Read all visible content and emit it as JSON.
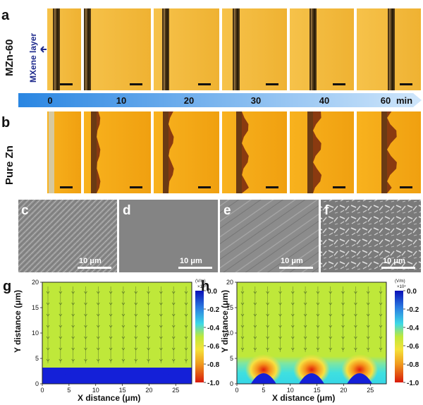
{
  "figure": {
    "panel_labels": [
      "a",
      "b",
      "c",
      "d",
      "e",
      "f",
      "g",
      "h"
    ],
    "row_a_label": "MZn-60",
    "row_b_label": "Pure Zn",
    "annotation": "MXene layer",
    "time_ticks": [
      "0",
      "10",
      "20",
      "30",
      "40",
      "60"
    ],
    "time_unit": "min",
    "sem_scalebar": "10 μm",
    "sim_xlabel": "X distance (μm)",
    "sim_ylabel": "Y distance (μm)",
    "sim_xticks": [
      "0",
      "5",
      "10",
      "15",
      "20",
      "25"
    ],
    "sim_yticks": [
      "0",
      "5",
      "10",
      "15",
      "20"
    ],
    "colorbar_unit_g": "(V/m)",
    "colorbar_exp_g": "×10⁴",
    "colorbar_unit_h": "(V/m)",
    "colorbar_exp_h": "×10⁴",
    "colorbar_ticks": [
      "0.0",
      "-0.2",
      "-0.4",
      "-0.6",
      "-0.8",
      "-1.0"
    ]
  },
  "colors": {
    "optical_bg": "#efb330",
    "optical_bg_b": "#f3a81a",
    "time_arrow": "#7fb6ea",
    "field_green": "#bfe83a",
    "zn_blue": "#1420d8",
    "mxene_cyan": "#4ee3e6"
  }
}
